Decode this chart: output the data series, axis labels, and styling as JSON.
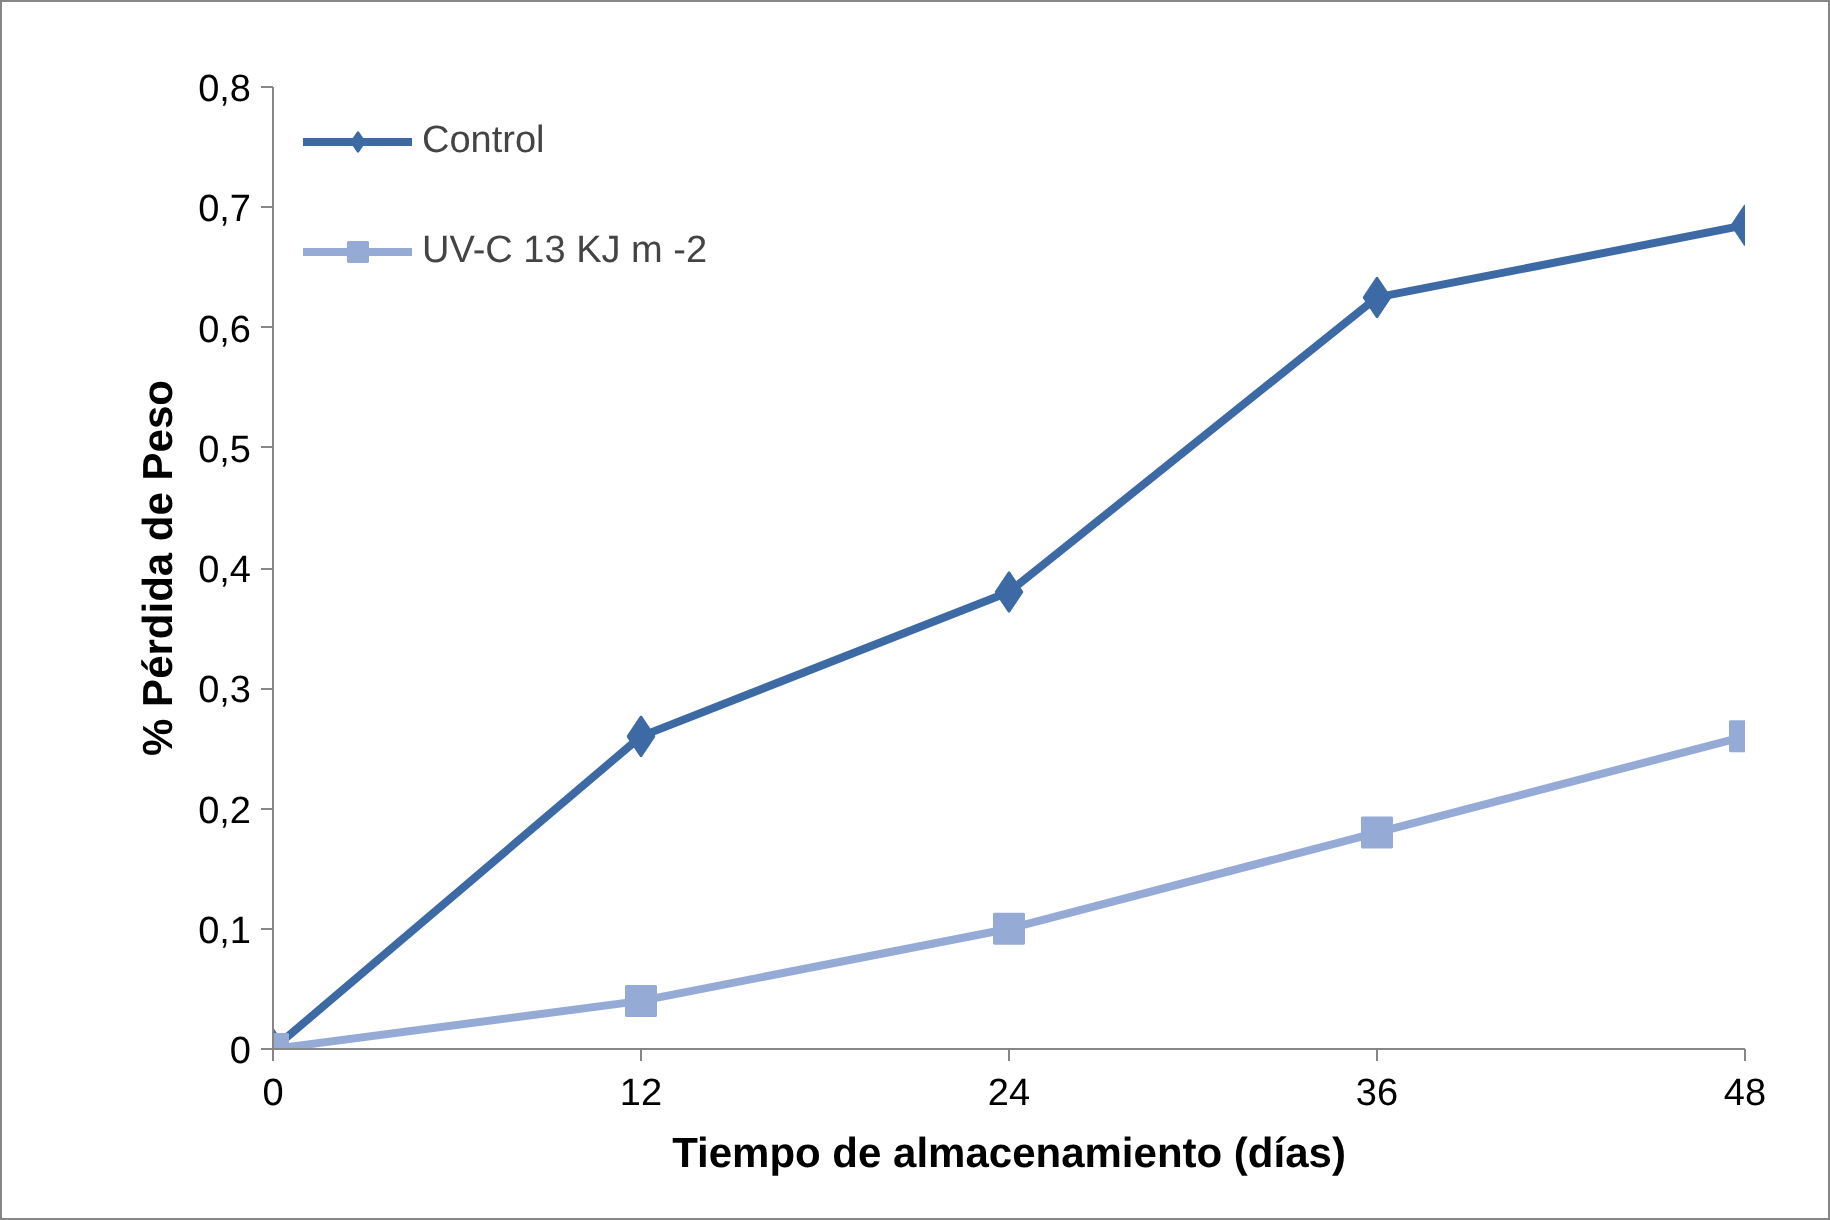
{
  "chart_data": {
    "type": "line",
    "xlabel": "Tiempo de almacenamiento (días)",
    "ylabel": "% Pérdida de Peso",
    "x": [
      0,
      12,
      24,
      36,
      48
    ],
    "series": [
      {
        "name": "Control",
        "color": "#3d6aa5",
        "marker": "diamond",
        "values": [
          0,
          0.26,
          0.38,
          0.625,
          0.685
        ]
      },
      {
        "name": "UV-C 13 KJ m -2",
        "color": "#95abd6",
        "marker": "square",
        "values": [
          0,
          0.04,
          0.1,
          0.18,
          0.26
        ]
      }
    ],
    "xlim": [
      0,
      48
    ],
    "xticks": [
      0,
      12,
      24,
      36,
      48
    ],
    "ylim": [
      0,
      0.8
    ],
    "yticks": [
      0,
      {
        "value": 0.1,
        "label": "0,1"
      },
      {
        "value": 0.2,
        "label": "0,2"
      },
      {
        "value": 0.3,
        "label": "0,3"
      },
      {
        "value": 0.4,
        "label": "0,4"
      },
      {
        "value": 0.5,
        "label": "0,5"
      },
      {
        "value": 0.6,
        "label": "0,6"
      },
      {
        "value": 0.7,
        "label": "0,7"
      },
      {
        "value": 0.8,
        "label": "0,8"
      }
    ],
    "grid": false,
    "legend": "top left",
    "line_style": "solid"
  }
}
